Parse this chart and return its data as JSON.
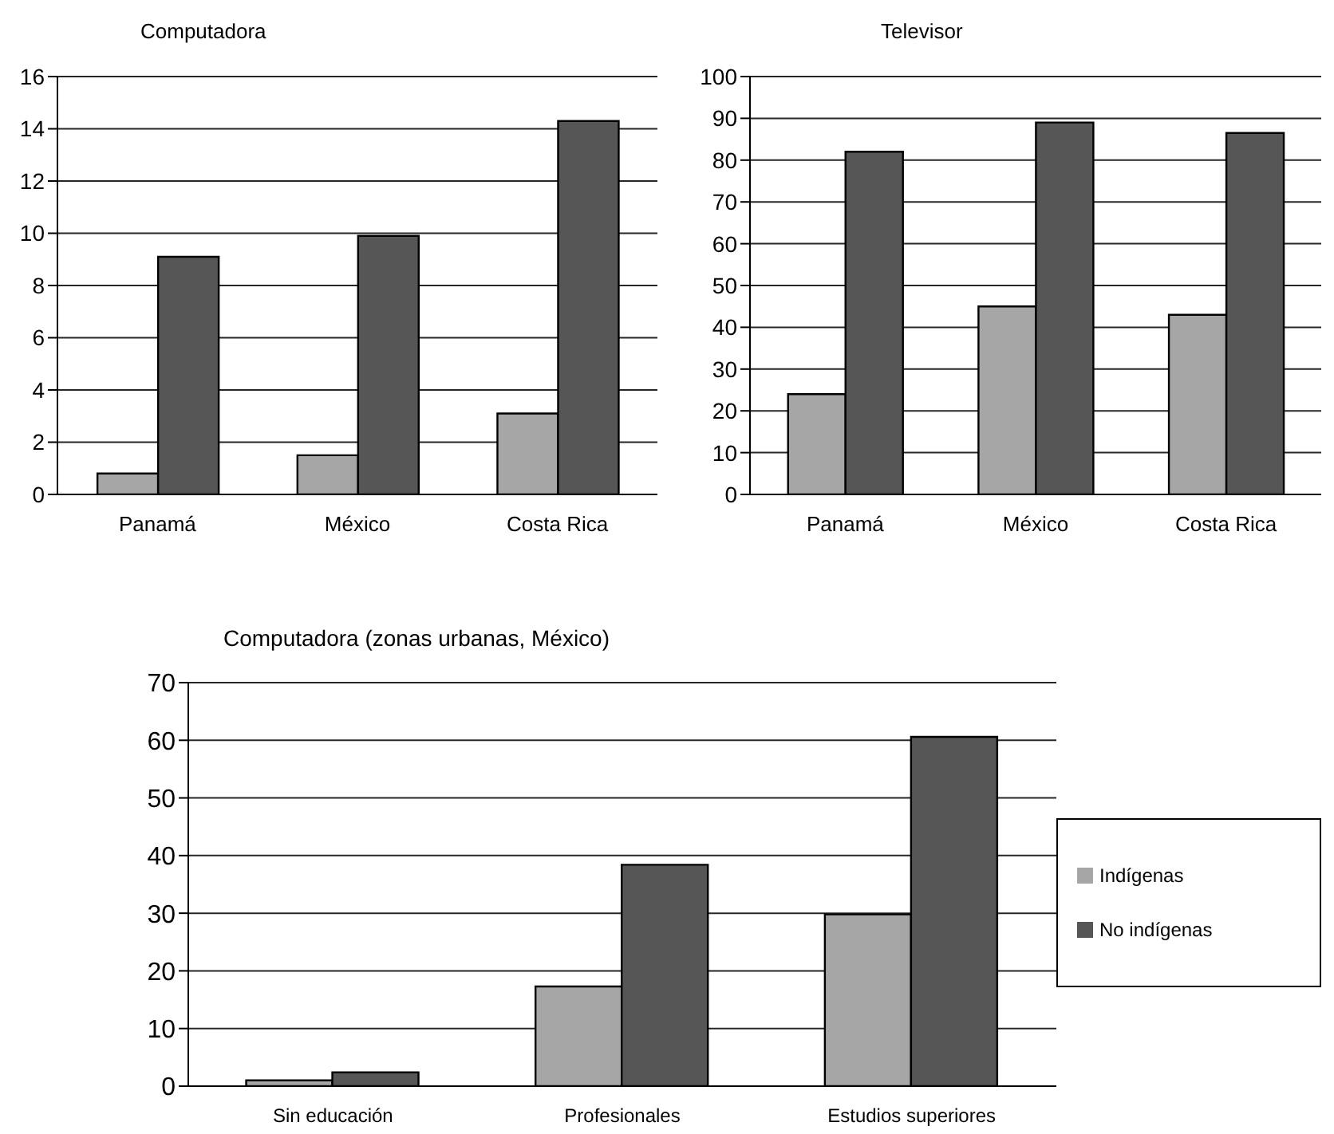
{
  "chart_data": [
    {
      "type": "bar",
      "title": "Computadora",
      "categories": [
        "Panamá",
        "México",
        "Costa Rica"
      ],
      "series": [
        {
          "color": "#a6a6a6",
          "values": [
            0.8,
            1.5,
            3.1
          ]
        },
        {
          "color": "#565656",
          "values": [
            9.1,
            9.9,
            14.3
          ]
        }
      ],
      "ylim": [
        0,
        16
      ],
      "yticks": [
        0,
        2,
        4,
        6,
        8,
        10,
        12,
        14,
        16
      ],
      "grid": "y",
      "legend": false
    },
    {
      "type": "bar",
      "title": "Televisor",
      "categories": [
        "Panamá",
        "México",
        "Costa Rica"
      ],
      "series": [
        {
          "color": "#a6a6a6",
          "values": [
            24,
            45,
            43
          ]
        },
        {
          "color": "#565656",
          "values": [
            82,
            89,
            86.5
          ]
        }
      ],
      "ylim": [
        0,
        100
      ],
      "yticks": [
        0,
        10,
        20,
        30,
        40,
        50,
        60,
        70,
        80,
        90,
        100
      ],
      "grid": "y",
      "legend": false
    },
    {
      "type": "bar",
      "title": "Computadora (zonas urbanas, México)",
      "categories": [
        "Sin educación",
        "Profesionales",
        "Estudios superiores"
      ],
      "series": [
        {
          "name": "Indígenas",
          "color": "#a6a6a6",
          "values": [
            1,
            17.3,
            29.8
          ]
        },
        {
          "name": "No indígenas",
          "color": "#565656",
          "values": [
            2.4,
            38.4,
            60.6
          ]
        }
      ],
      "ylim": [
        0,
        70
      ],
      "yticks": [
        0,
        10,
        20,
        30,
        40,
        50,
        60,
        70
      ],
      "grid": "y",
      "legend": "right"
    }
  ]
}
